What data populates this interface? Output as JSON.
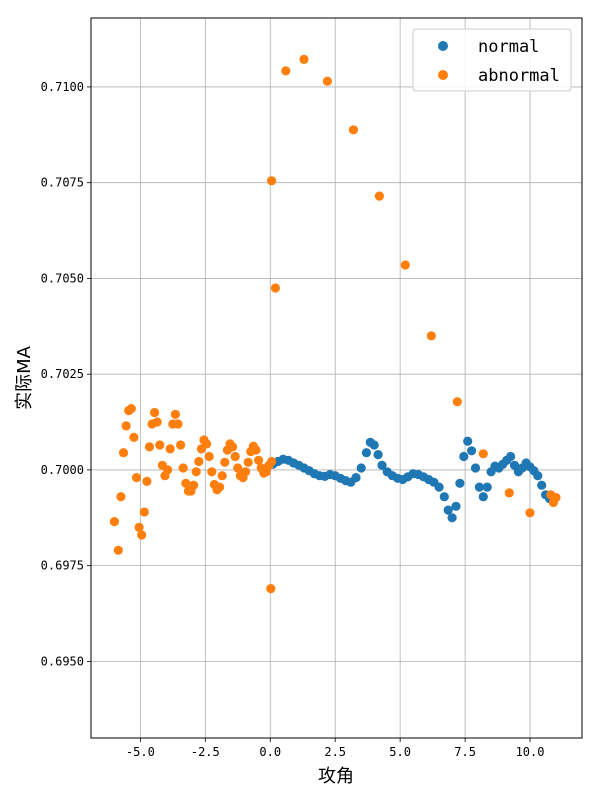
{
  "chart_data": {
    "type": "scatter",
    "title": "",
    "xlabel": "攻角",
    "ylabel": "实际MA",
    "xlim": [
      -6.9,
      12.0
    ],
    "ylim": [
      0.693,
      0.7118
    ],
    "xticks": [
      -5.0,
      -2.5,
      0.0,
      2.5,
      5.0,
      7.5,
      10.0
    ],
    "xtick_labels": [
      "-5.0",
      "-2.5",
      "0.0",
      "2.5",
      "5.0",
      "7.5",
      "10.0"
    ],
    "yticks": [
      0.695,
      0.6975,
      0.7,
      0.7025,
      0.705,
      0.7075,
      0.71
    ],
    "ytick_labels": [
      "0.6950",
      "0.6975",
      "0.7000",
      "0.7025",
      "0.7050",
      "0.7075",
      "0.7100"
    ],
    "grid": true,
    "legend_position": "top-right",
    "series": [
      {
        "name": "normal",
        "color": "#1f77b4",
        "points": [
          [
            0.1,
            0.70015
          ],
          [
            0.3,
            0.70022
          ],
          [
            0.5,
            0.70028
          ],
          [
            0.7,
            0.70025
          ],
          [
            0.9,
            0.70018
          ],
          [
            1.1,
            0.70012
          ],
          [
            1.3,
            0.70005
          ],
          [
            1.5,
            0.69998
          ],
          [
            1.7,
            0.6999
          ],
          [
            1.9,
            0.69985
          ],
          [
            2.1,
            0.69983
          ],
          [
            2.3,
            0.69988
          ],
          [
            2.5,
            0.69985
          ],
          [
            2.7,
            0.69978
          ],
          [
            2.9,
            0.69972
          ],
          [
            3.1,
            0.69968
          ],
          [
            3.3,
            0.6998
          ],
          [
            3.5,
            0.70005
          ],
          [
            3.7,
            0.70045
          ],
          [
            3.85,
            0.70072
          ],
          [
            4.0,
            0.70065
          ],
          [
            4.15,
            0.7004
          ],
          [
            4.3,
            0.70012
          ],
          [
            4.5,
            0.69995
          ],
          [
            4.7,
            0.69985
          ],
          [
            4.9,
            0.69978
          ],
          [
            5.1,
            0.69975
          ],
          [
            5.3,
            0.69982
          ],
          [
            5.5,
            0.6999
          ],
          [
            5.7,
            0.69988
          ],
          [
            5.9,
            0.69982
          ],
          [
            6.1,
            0.69975
          ],
          [
            6.3,
            0.69968
          ],
          [
            6.5,
            0.69955
          ],
          [
            6.7,
            0.6993
          ],
          [
            6.85,
            0.69895
          ],
          [
            7.0,
            0.69875
          ],
          [
            7.15,
            0.69905
          ],
          [
            7.3,
            0.69965
          ],
          [
            7.45,
            0.70035
          ],
          [
            7.6,
            0.70075
          ],
          [
            7.75,
            0.7005
          ],
          [
            7.9,
            0.70005
          ],
          [
            8.05,
            0.69955
          ],
          [
            8.2,
            0.6993
          ],
          [
            8.35,
            0.69955
          ],
          [
            8.5,
            0.69995
          ],
          [
            8.65,
            0.7001
          ],
          [
            8.8,
            0.70005
          ],
          [
            8.95,
            0.70015
          ],
          [
            9.1,
            0.70025
          ],
          [
            9.25,
            0.70035
          ],
          [
            9.4,
            0.70012
          ],
          [
            9.55,
            0.69995
          ],
          [
            9.7,
            0.70005
          ],
          [
            9.85,
            0.70018
          ],
          [
            10.0,
            0.70008
          ],
          [
            10.15,
            0.69998
          ],
          [
            10.3,
            0.69985
          ],
          [
            10.45,
            0.6996
          ],
          [
            10.6,
            0.69935
          ],
          [
            10.75,
            0.69925
          ]
        ]
      },
      {
        "name": "abnormal",
        "color": "#ff7f0e",
        "points": [
          [
            0.6,
            0.71042
          ],
          [
            1.3,
            0.71072
          ],
          [
            2.2,
            0.71015
          ],
          [
            3.2,
            0.70888
          ],
          [
            4.2,
            0.70715
          ],
          [
            5.2,
            0.70535
          ],
          [
            6.2,
            0.7035
          ],
          [
            7.2,
            0.70178
          ],
          [
            8.2,
            0.70042
          ],
          [
            9.2,
            0.6994
          ],
          [
            10.0,
            0.69888
          ],
          [
            0.05,
            0.70755
          ],
          [
            0.2,
            0.70475
          ],
          [
            0.02,
            0.6969
          ],
          [
            -6.0,
            0.69865
          ],
          [
            -5.85,
            0.6979
          ],
          [
            -5.75,
            0.6993
          ],
          [
            -5.65,
            0.70045
          ],
          [
            -5.55,
            0.70115
          ],
          [
            -5.45,
            0.70155
          ],
          [
            -5.35,
            0.7016
          ],
          [
            -5.25,
            0.70085
          ],
          [
            -5.15,
            0.6998
          ],
          [
            -5.05,
            0.6985
          ],
          [
            -4.95,
            0.6983
          ],
          [
            -4.85,
            0.6989
          ],
          [
            -4.75,
            0.6997
          ],
          [
            -4.65,
            0.7006
          ],
          [
            -4.55,
            0.7012
          ],
          [
            -4.45,
            0.7015
          ],
          [
            -4.35,
            0.70125
          ],
          [
            -4.25,
            0.70065
          ],
          [
            -4.15,
            0.70012
          ],
          [
            -4.05,
            0.69985
          ],
          [
            -3.95,
            0.7
          ],
          [
            -3.85,
            0.70055
          ],
          [
            -3.75,
            0.7012
          ],
          [
            -3.65,
            0.70145
          ],
          [
            -3.55,
            0.7012
          ],
          [
            -3.45,
            0.70065
          ],
          [
            -3.35,
            0.70005
          ],
          [
            -3.25,
            0.69965
          ],
          [
            -3.15,
            0.69945
          ],
          [
            -3.05,
            0.69945
          ],
          [
            -2.95,
            0.6996
          ],
          [
            -2.85,
            0.69995
          ],
          [
            -2.75,
            0.70022
          ],
          [
            -2.65,
            0.70055
          ],
          [
            -2.55,
            0.70078
          ],
          [
            -2.45,
            0.70068
          ],
          [
            -2.35,
            0.70035
          ],
          [
            -2.25,
            0.69995
          ],
          [
            -2.15,
            0.69962
          ],
          [
            -2.05,
            0.69948
          ],
          [
            -1.95,
            0.69955
          ],
          [
            -1.85,
            0.69985
          ],
          [
            -1.75,
            0.7002
          ],
          [
            -1.65,
            0.70052
          ],
          [
            -1.55,
            0.70068
          ],
          [
            -1.45,
            0.7006
          ],
          [
            -1.35,
            0.70035
          ],
          [
            -1.25,
            0.70005
          ],
          [
            -1.15,
            0.69985
          ],
          [
            -1.05,
            0.6998
          ],
          [
            -0.95,
            0.69995
          ],
          [
            -0.85,
            0.7002
          ],
          [
            -0.75,
            0.70048
          ],
          [
            -0.65,
            0.70062
          ],
          [
            -0.55,
            0.70052
          ],
          [
            -0.45,
            0.70025
          ],
          [
            -0.35,
            0.70005
          ],
          [
            -0.25,
            0.69992
          ],
          [
            -0.15,
            0.69995
          ],
          [
            -0.05,
            0.70012
          ],
          [
            0.05,
            0.70022
          ],
          [
            10.8,
            0.69935
          ],
          [
            10.9,
            0.69915
          ],
          [
            11.0,
            0.69928
          ]
        ]
      }
    ]
  }
}
